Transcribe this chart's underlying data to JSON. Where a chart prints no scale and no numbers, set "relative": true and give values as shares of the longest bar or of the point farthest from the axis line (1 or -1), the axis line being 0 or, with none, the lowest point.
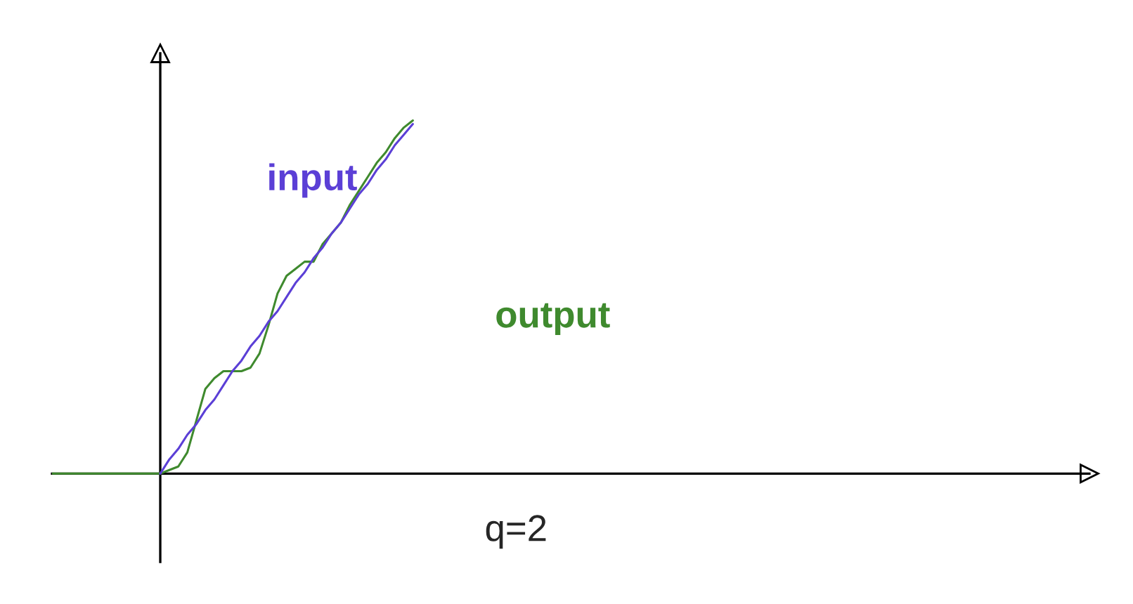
{
  "chart_data": {
    "type": "line",
    "relative": true,
    "legend": false,
    "marker": "none",
    "line_style": "solid",
    "categories": [
      null,
      null,
      null,
      null,
      null,
      null,
      null,
      null,
      null,
      null,
      null,
      null,
      null,
      null,
      null,
      null,
      null,
      null,
      null,
      null,
      null,
      null,
      null,
      null,
      null,
      null,
      null,
      null,
      null,
      null,
      null,
      null,
      null,
      null,
      null,
      null,
      null,
      null,
      null,
      null,
      null,
      null,
      null,
      null,
      null,
      null,
      null,
      null,
      null,
      null,
      null,
      null,
      null,
      null,
      null,
      null,
      null,
      null,
      null,
      null,
      null,
      null,
      null,
      null,
      null,
      null,
      null,
      null,
      null,
      null,
      null,
      null,
      null,
      null,
      null,
      null,
      null,
      null,
      null,
      null,
      null,
      null,
      null,
      null,
      null,
      null,
      null,
      null,
      null,
      null,
      null,
      null,
      null,
      null,
      null,
      null,
      null,
      null,
      null,
      null,
      null,
      null,
      null,
      null,
      null,
      null,
      null,
      null,
      null,
      null,
      null,
      null,
      null,
      null,
      null,
      null
    ],
    "series": [
      {
        "name": "input",
        "color": "#5b3fd6",
        "values": [
          null,
          null,
          null,
          null,
          null,
          null,
          null,
          null,
          null,
          null,
          null,
          null,
          0,
          0.04,
          0.07,
          0.11,
          0.14,
          0.18,
          0.21,
          0.25,
          0.29,
          0.32,
          0.36,
          0.39,
          0.43,
          0.46,
          0.5,
          0.54,
          0.57,
          0.61,
          0.64,
          0.68,
          0.71,
          0.75,
          0.79,
          0.82,
          0.86,
          0.89,
          0.93,
          0.96,
          0.99,
          null,
          null,
          null,
          null,
          null,
          null,
          null,
          null,
          null,
          null,
          null,
          null,
          null,
          null,
          null,
          null,
          null,
          null,
          null,
          null,
          null,
          null,
          null,
          null,
          null,
          null,
          null,
          null,
          null,
          null,
          null,
          null,
          null,
          null,
          null,
          null,
          null,
          null,
          null,
          null,
          null,
          null,
          null,
          null,
          null,
          null,
          null,
          null,
          null,
          null,
          null,
          null,
          null,
          null,
          null,
          null,
          null,
          null,
          null,
          null,
          null,
          null,
          null,
          null,
          null,
          null,
          null,
          null,
          null,
          null,
          null,
          null,
          null,
          null,
          null
        ]
      },
      {
        "name": "output",
        "color": "#3f8a2e",
        "values": [
          0,
          0,
          0,
          0,
          0,
          0,
          0,
          0,
          0,
          0,
          0,
          0,
          0,
          0.01,
          0.02,
          0.06,
          0.15,
          0.24,
          0.27,
          0.29,
          0.29,
          0.29,
          0.3,
          0.34,
          0.42,
          0.51,
          0.56,
          0.58,
          0.6,
          0.6,
          0.65,
          0.68,
          0.71,
          0.76,
          0.8,
          0.84,
          0.88,
          0.91,
          0.95,
          0.98,
          1.0,
          null,
          null,
          null,
          null,
          null,
          null,
          null,
          null,
          null,
          null,
          null,
          null,
          null,
          null,
          null,
          null,
          null,
          null,
          null,
          null,
          null,
          null,
          null,
          null,
          null,
          null,
          null,
          null,
          null,
          null,
          null,
          null,
          null,
          null,
          null,
          null,
          null,
          null,
          null,
          null,
          null,
          null,
          null,
          null,
          null,
          null,
          null,
          null,
          null,
          null,
          null,
          null,
          null,
          null,
          null,
          null,
          null,
          null,
          null,
          null,
          null,
          null,
          null,
          null,
          null,
          null,
          null,
          null,
          null,
          null,
          null,
          null,
          null,
          null,
          null
        ]
      }
    ],
    "annotations": [
      "q=2"
    ]
  }
}
